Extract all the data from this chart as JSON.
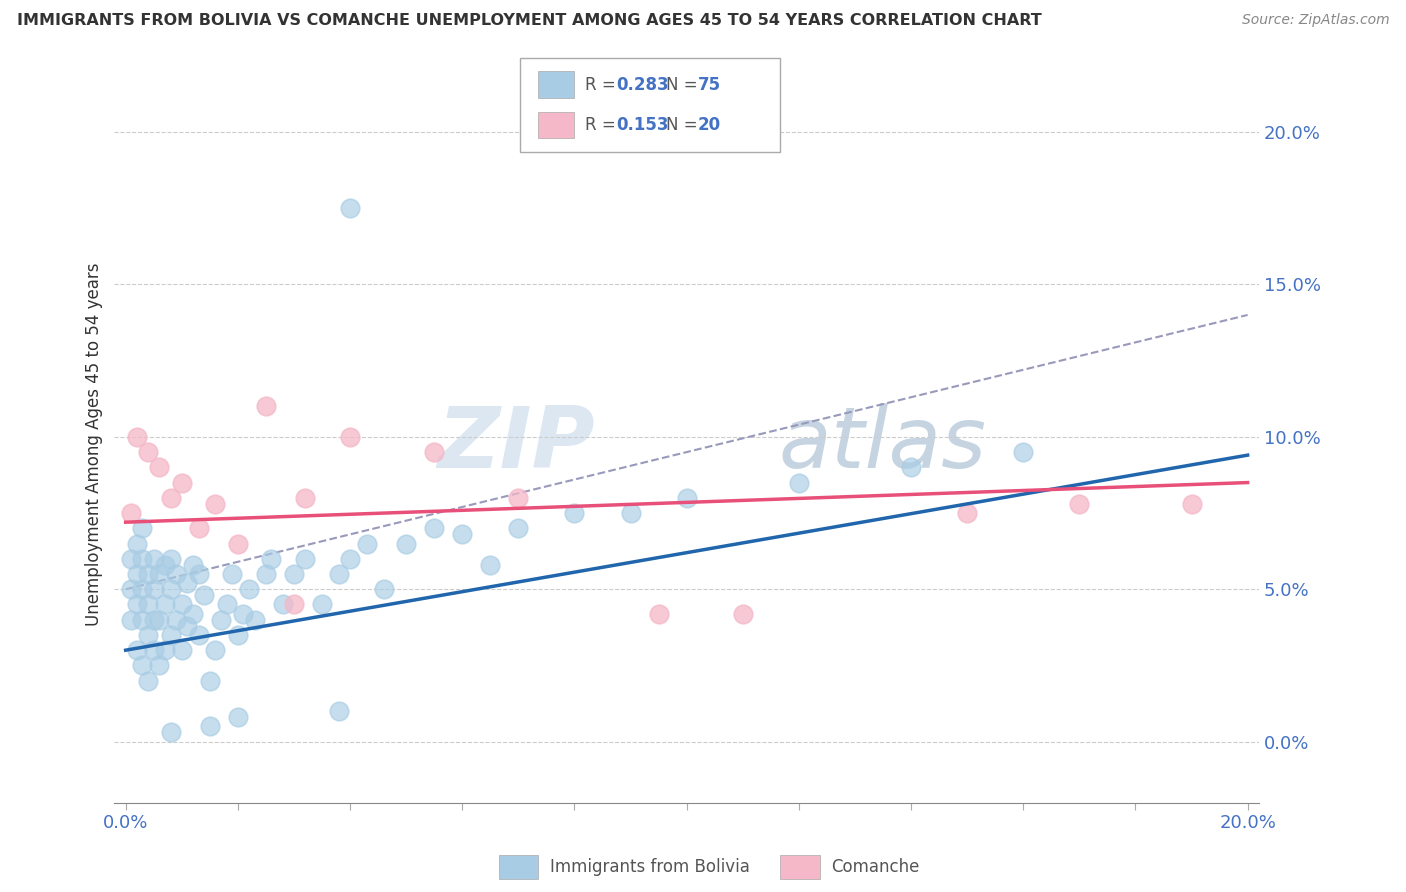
{
  "title": "IMMIGRANTS FROM BOLIVIA VS COMANCHE UNEMPLOYMENT AMONG AGES 45 TO 54 YEARS CORRELATION CHART",
  "source": "Source: ZipAtlas.com",
  "ylabel": "Unemployment Among Ages 45 to 54 years",
  "xlim": [
    -0.002,
    0.202
  ],
  "ylim": [
    -0.02,
    0.215
  ],
  "yticks_right": [
    0.0,
    0.05,
    0.1,
    0.15,
    0.2
  ],
  "ytick_labels_right": [
    "0.0%",
    "5.0%",
    "10.0%",
    "15.0%",
    "20.0%"
  ],
  "xtick_labels": [
    "0.0%",
    "",
    "",
    "",
    "",
    "",
    "",
    "",
    "",
    "",
    "20.0%"
  ],
  "legend_r1": "0.283",
  "legend_n1": "75",
  "legend_r2": "0.153",
  "legend_n2": "20",
  "blue_color": "#a8cce4",
  "pink_color": "#f4b8c8",
  "blue_line_color": "#2166ac",
  "pink_line_color": "#e8507a",
  "gray_dash_color": "#9999bb",
  "watermark": "ZIPatlas",
  "watermark_color": "#c8d8ea",
  "bolivia_x": [
    0.001,
    0.001,
    0.001,
    0.002,
    0.002,
    0.002,
    0.002,
    0.003,
    0.003,
    0.003,
    0.003,
    0.003,
    0.004,
    0.004,
    0.004,
    0.004,
    0.005,
    0.005,
    0.005,
    0.005,
    0.006,
    0.006,
    0.006,
    0.007,
    0.007,
    0.007,
    0.008,
    0.008,
    0.008,
    0.009,
    0.009,
    0.01,
    0.01,
    0.011,
    0.011,
    0.012,
    0.012,
    0.013,
    0.013,
    0.014,
    0.015,
    0.016,
    0.017,
    0.018,
    0.019,
    0.02,
    0.021,
    0.022,
    0.023,
    0.025,
    0.026,
    0.028,
    0.03,
    0.032,
    0.035,
    0.038,
    0.04,
    0.043,
    0.046,
    0.05,
    0.055,
    0.06,
    0.065,
    0.07,
    0.08,
    0.09,
    0.1,
    0.12,
    0.14,
    0.16,
    0.038,
    0.02,
    0.015,
    0.008,
    0.04
  ],
  "bolivia_y": [
    0.05,
    0.04,
    0.06,
    0.03,
    0.045,
    0.055,
    0.065,
    0.025,
    0.04,
    0.05,
    0.06,
    0.07,
    0.02,
    0.035,
    0.045,
    0.055,
    0.03,
    0.04,
    0.05,
    0.06,
    0.025,
    0.04,
    0.055,
    0.03,
    0.045,
    0.058,
    0.035,
    0.05,
    0.06,
    0.04,
    0.055,
    0.03,
    0.045,
    0.038,
    0.052,
    0.042,
    0.058,
    0.035,
    0.055,
    0.048,
    0.02,
    0.03,
    0.04,
    0.045,
    0.055,
    0.035,
    0.042,
    0.05,
    0.04,
    0.055,
    0.06,
    0.045,
    0.055,
    0.06,
    0.045,
    0.055,
    0.06,
    0.065,
    0.05,
    0.065,
    0.07,
    0.068,
    0.058,
    0.07,
    0.075,
    0.075,
    0.08,
    0.085,
    0.09,
    0.095,
    0.01,
    0.008,
    0.005,
    0.003,
    0.175
  ],
  "comanche_x": [
    0.001,
    0.002,
    0.004,
    0.006,
    0.008,
    0.01,
    0.013,
    0.016,
    0.02,
    0.025,
    0.032,
    0.04,
    0.055,
    0.07,
    0.095,
    0.11,
    0.15,
    0.17,
    0.19,
    0.03
  ],
  "comanche_y": [
    0.075,
    0.1,
    0.095,
    0.09,
    0.08,
    0.085,
    0.07,
    0.078,
    0.065,
    0.11,
    0.08,
    0.1,
    0.095,
    0.08,
    0.042,
    0.042,
    0.075,
    0.078,
    0.078,
    0.045
  ],
  "blue_intercept": 0.03,
  "blue_slope": 0.32,
  "pink_intercept": 0.072,
  "pink_slope": 0.065,
  "gray_intercept": 0.05,
  "gray_slope": 0.45
}
